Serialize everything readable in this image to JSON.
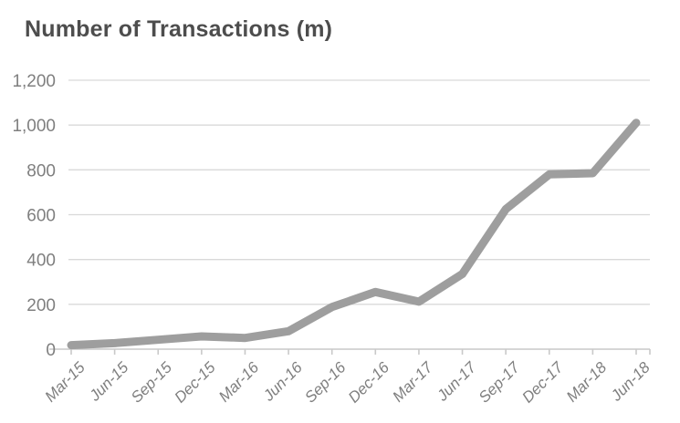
{
  "page": {
    "background": "#ffffff"
  },
  "chart_data": {
    "type": "line",
    "title": "Number of Transactions (m)",
    "categories": [
      "Mar-15",
      "Jun-15",
      "Sep-15",
      "Dec-15",
      "Mar-16",
      "Jun-16",
      "Sep-16",
      "Dec-16",
      "Mar-17",
      "Jun-17",
      "Sep-17",
      "Dec-17",
      "Mar-18",
      "Jun-18"
    ],
    "series": [
      {
        "name": "Number of Transactions (m)",
        "values": [
          18,
          27,
          42,
          57,
          50,
          80,
          188,
          255,
          212,
          335,
          625,
          780,
          785,
          1010
        ]
      }
    ],
    "xlabel": "",
    "ylabel": "",
    "ylim": [
      0,
      1200
    ],
    "y_ticks": [
      0,
      200,
      400,
      600,
      800,
      1000,
      1200
    ],
    "y_tick_labels": [
      "0",
      "200",
      "400",
      "600",
      "800",
      "1,000",
      "1,200"
    ],
    "grid": true,
    "legend": "none",
    "colors": {
      "line": "#9e9e9e",
      "gridline": "#d9d9d9",
      "axis": "#c9c9c9",
      "title": "#4d4d4d",
      "tick_label": "#7f7f7f"
    }
  }
}
